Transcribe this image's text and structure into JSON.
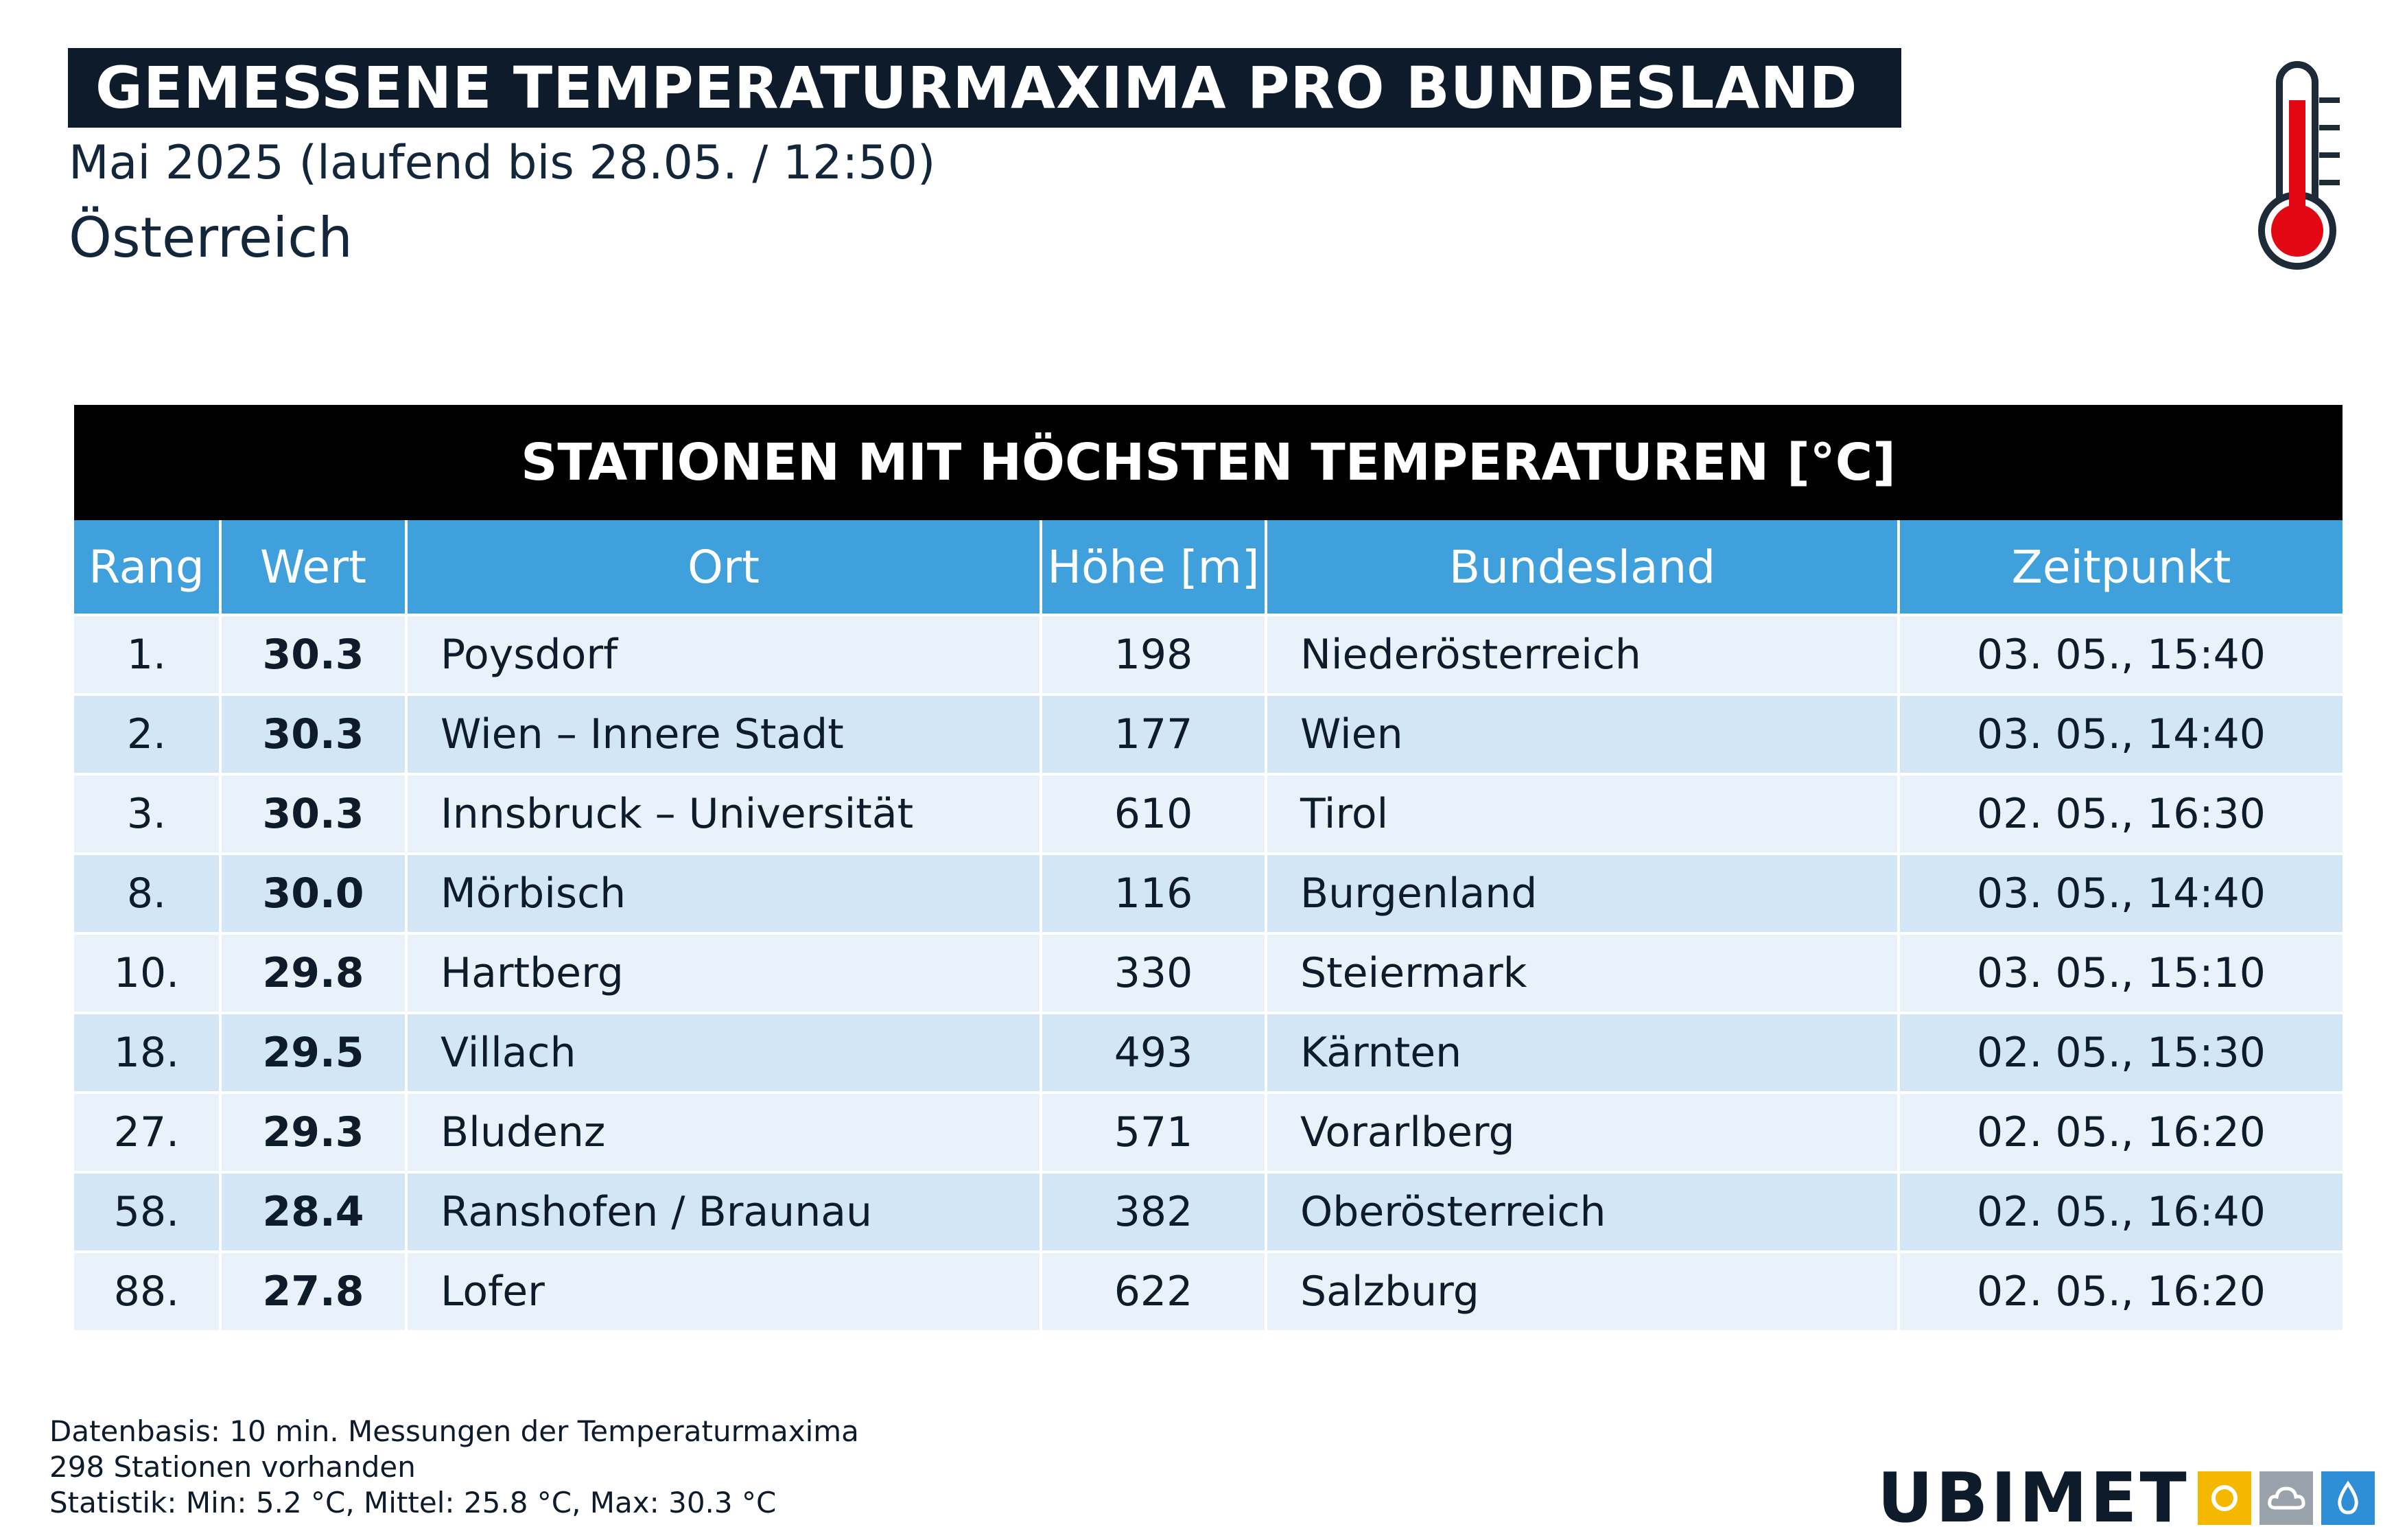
{
  "header": {
    "title": "GEMESSENE TEMPERATURMAXIMA PRO BUNDESLAND",
    "subtitle": "Mai 2025 (laufend bis 28.05. / 12:50)",
    "region": "Österreich"
  },
  "table": {
    "caption": "STATIONEN MIT HÖCHSTEN TEMPERATUREN [°C]",
    "columns": [
      "Rang",
      "Wert",
      "Ort",
      "Höhe [m]",
      "Bundesland",
      "Zeitpunkt"
    ],
    "rows": [
      [
        "1.",
        "30.3",
        "Poysdorf",
        "198",
        "Niederösterreich",
        "03. 05., 15:40"
      ],
      [
        "2.",
        "30.3",
        "Wien – Innere Stadt",
        "177",
        "Wien",
        "03. 05., 14:40"
      ],
      [
        "3.",
        "30.3",
        "Innsbruck – Universität",
        "610",
        "Tirol",
        "02. 05., 16:30"
      ],
      [
        "8.",
        "30.0",
        "Mörbisch",
        "116",
        "Burgenland",
        "03. 05., 14:40"
      ],
      [
        "10.",
        "29.8",
        "Hartberg",
        "330",
        "Steiermark",
        "03. 05., 15:10"
      ],
      [
        "18.",
        "29.5",
        "Villach",
        "493",
        "Kärnten",
        "02. 05., 15:30"
      ],
      [
        "27.",
        "29.3",
        "Bludenz",
        "571",
        "Vorarlberg",
        "02. 05., 16:20"
      ],
      [
        "58.",
        "28.4",
        "Ranshofen / Braunau",
        "382",
        "Oberösterreich",
        "02. 05., 16:40"
      ],
      [
        "88.",
        "27.8",
        "Lofer",
        "622",
        "Salzburg",
        "02. 05., 16:20"
      ]
    ]
  },
  "footer": {
    "line1": "Datenbasis: 10 min. Messungen der Temperaturmaxima",
    "line2": "298 Stationen vorhanden",
    "line3": "Statistik: Min: 5.2 °C, Mittel: 25.8 °C, Max: 30.3 °C"
  },
  "logo": {
    "text": "UBIMET",
    "icons": [
      "sun-icon",
      "cloud-icon",
      "drop-icon"
    ]
  },
  "colors": {
    "title_bg": "#0d1b2a",
    "table_header_bg": "#3fa0dc",
    "row_odd": "#e9f2fb",
    "row_even": "#d3e6f6",
    "thermometer_red": "#e30613",
    "logo_sun": "#f5b800",
    "logo_cloud": "#9aa3ab",
    "logo_drop": "#2e8fd6"
  }
}
